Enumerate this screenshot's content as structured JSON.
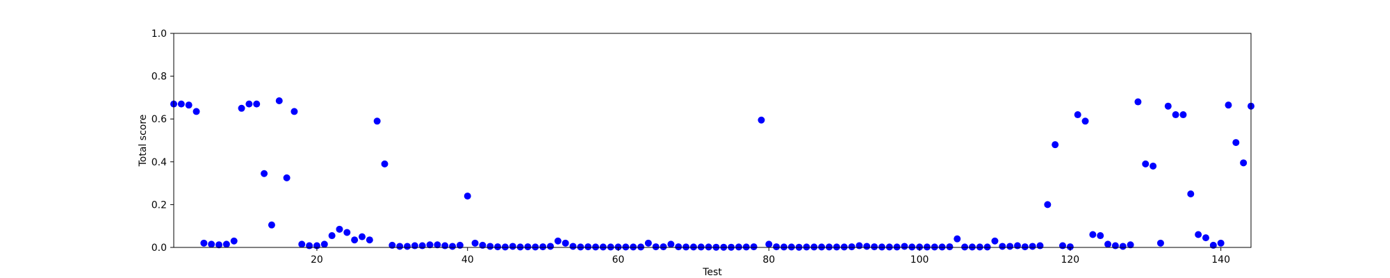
{
  "chart_data": {
    "type": "scatter",
    "title": "",
    "xlabel": "Test",
    "ylabel": "Total score",
    "xlim": [
      1,
      144
    ],
    "ylim": [
      0.0,
      1.0
    ],
    "xticks": [
      20,
      40,
      60,
      80,
      100,
      120,
      140
    ],
    "yticks": [
      "0.0",
      "0.2",
      "0.4",
      "0.6",
      "0.8",
      "1.0"
    ],
    "grid": false,
    "marker_color": "#0000ff",
    "series": [
      {
        "x": [
          1,
          2,
          3,
          4,
          5,
          6,
          7,
          8,
          9,
          10,
          11,
          12,
          13,
          14,
          15,
          16,
          17,
          18,
          19,
          20,
          21,
          22,
          23,
          24,
          25,
          26,
          27,
          28,
          29,
          30,
          31,
          32,
          33,
          34,
          35,
          36,
          37,
          38,
          39,
          40,
          41,
          42,
          43,
          44,
          45,
          46,
          47,
          48,
          49,
          50,
          51,
          52,
          53,
          54,
          55,
          56,
          57,
          58,
          59,
          60,
          61,
          62,
          63,
          64,
          65,
          66,
          67,
          68,
          69,
          70,
          71,
          72,
          73,
          74,
          75,
          76,
          77,
          78,
          79,
          80,
          81,
          82,
          83,
          84,
          85,
          86,
          87,
          88,
          89,
          90,
          91,
          92,
          93,
          94,
          95,
          96,
          97,
          98,
          99,
          100,
          101,
          102,
          103,
          104,
          105,
          106,
          107,
          108,
          109,
          110,
          111,
          112,
          113,
          114,
          115,
          116,
          117,
          118,
          119,
          120,
          121,
          122,
          123,
          124,
          125,
          126,
          127,
          128,
          129,
          130,
          131,
          132,
          133,
          134,
          135,
          136,
          137,
          138,
          139,
          140,
          141,
          142,
          143,
          144
        ],
        "y": [
          0.67,
          0.67,
          0.665,
          0.635,
          0.02,
          0.015,
          0.012,
          0.015,
          0.03,
          0.65,
          0.67,
          0.67,
          0.345,
          0.105,
          0.685,
          0.325,
          0.635,
          0.015,
          0.008,
          0.008,
          0.015,
          0.055,
          0.085,
          0.07,
          0.035,
          0.05,
          0.035,
          0.59,
          0.39,
          0.01,
          0.005,
          0.005,
          0.008,
          0.008,
          0.012,
          0.012,
          0.008,
          0.005,
          0.01,
          0.24,
          0.02,
          0.01,
          0.005,
          0.003,
          0.002,
          0.005,
          0.002,
          0.003,
          0.002,
          0.003,
          0.005,
          0.03,
          0.02,
          0.005,
          0.002,
          0.003,
          0.002,
          0.002,
          0.002,
          0.002,
          0.002,
          0.002,
          0.002,
          0.02,
          0.003,
          0.003,
          0.015,
          0.003,
          0.002,
          0.002,
          0.002,
          0.002,
          0.001,
          0.001,
          0.001,
          0.002,
          0.002,
          0.003,
          0.595,
          0.015,
          0.003,
          0.002,
          0.002,
          0.001,
          0.002,
          0.002,
          0.002,
          0.002,
          0.002,
          0.002,
          0.003,
          0.008,
          0.005,
          0.003,
          0.002,
          0.002,
          0.002,
          0.005,
          0.002,
          0.002,
          0.002,
          0.002,
          0.002,
          0.003,
          0.04,
          0.002,
          0.002,
          0.002,
          0.002,
          0.03,
          0.005,
          0.005,
          0.008,
          0.003,
          0.005,
          0.008,
          0.2,
          0.48,
          0.008,
          0.003,
          0.62,
          0.59,
          0.06,
          0.055,
          0.015,
          0.008,
          0.005,
          0.012,
          0.68,
          0.39,
          0.38,
          0.02,
          0.66,
          0.62,
          0.62,
          0.25,
          0.06,
          0.045,
          0.01,
          0.02,
          0.665,
          0.49,
          0.395,
          0.66
        ]
      }
    ]
  }
}
